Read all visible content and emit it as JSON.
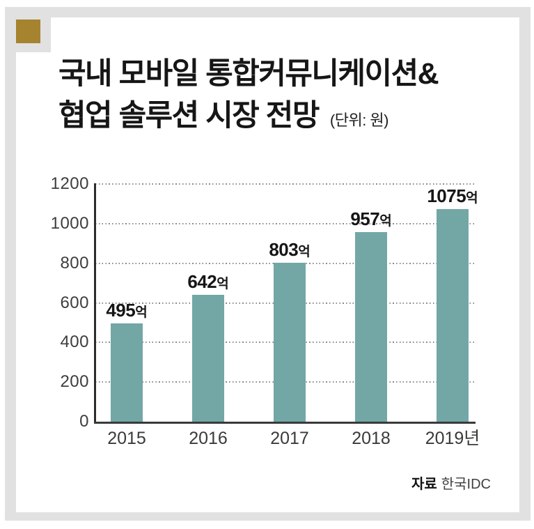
{
  "frame": {
    "color": "#e1e1e1",
    "accent_square_color": "#a5832f"
  },
  "title": {
    "line1": "국내 모바일 통합커뮤니케이션&",
    "line2": "협업 솔루션 시장 전망",
    "unit": "(단위: 원)"
  },
  "source": {
    "label": "자료",
    "value": "한국IDC"
  },
  "chart_data": {
    "type": "bar",
    "title": "국내 모바일 통합커뮤니케이션& 협업 솔루션 시장 전망",
    "unit_note": "(단위: 원)",
    "categories": [
      "2015",
      "2016",
      "2017",
      "2018",
      "2019년"
    ],
    "values": [
      495,
      642,
      803,
      957,
      1075
    ],
    "value_labels": [
      "495억",
      "642억",
      "803억",
      "957억",
      "1075억"
    ],
    "value_suffix": "억",
    "xlabel": "",
    "ylabel": "",
    "ylim": [
      0,
      1200
    ],
    "yticks": [
      0,
      200,
      400,
      600,
      800,
      1000,
      1200
    ],
    "grid": "horizontal-dotted",
    "legend": false,
    "bar_color": "#72a7a6",
    "axis_color": "#2d2d2d",
    "source": "자료 한국IDC"
  }
}
